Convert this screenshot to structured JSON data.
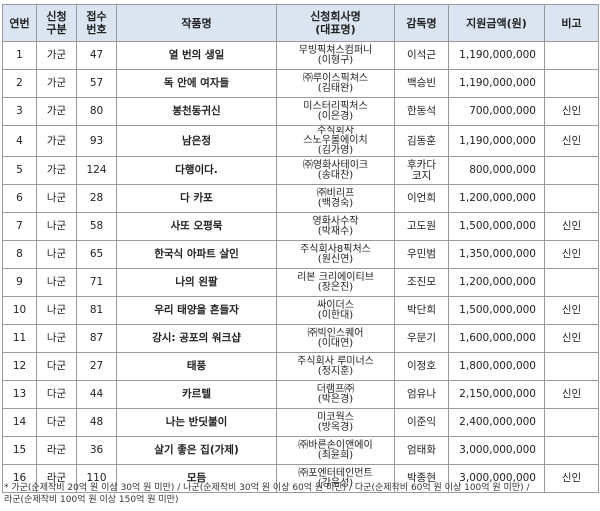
{
  "table": {
    "header": [
      [
        "연번"
      ],
      [
        "신청",
        "구분"
      ],
      [
        "접수",
        "번호"
      ],
      [
        "작품명"
      ],
      [
        "신청회사명",
        "(대표명)"
      ],
      [
        "감독명"
      ],
      [
        "지원금액(원)"
      ],
      [
        "비고"
      ]
    ],
    "rows": [
      [
        "1",
        "가군",
        "47",
        "열 번의 생일",
        [
          "무빙픽쳐스컴퍼니",
          "(이형구)"
        ],
        [
          "이석근"
        ],
        "1,190,000,000",
        ""
      ],
      [
        "2",
        "가군",
        "57",
        "독 안에 여자들",
        [
          "㈜루이스픽쳐스",
          "(김태완)"
        ],
        [
          "백승빈"
        ],
        "1,190,000,000",
        ""
      ],
      [
        "3",
        "가군",
        "80",
        "봉천동귀신",
        [
          "미스터리픽처스",
          "(이은경)"
        ],
        [
          "한동석"
        ],
        "700,000,000",
        "신인"
      ],
      [
        "4",
        "가군",
        "93",
        "남은정",
        [
          "주식회사",
          "스노우볼에이치",
          "(김가영)"
        ],
        [
          "김동훈"
        ],
        "1,190,000,000",
        "신인"
      ],
      [
        "5",
        "가군",
        "124",
        "다행이다.",
        [
          "㈜영화사테이크",
          "(송대찬)"
        ],
        [
          "후카다",
          "코지"
        ],
        "800,000,000",
        ""
      ],
      [
        "6",
        "나군",
        "28",
        "다 카포",
        [
          "㈜비리프",
          "(백경숙)"
        ],
        [
          "이언희"
        ],
        "1,200,000,000",
        ""
      ],
      [
        "7",
        "나군",
        "58",
        "사또 오평묵",
        [
          "영화사수작",
          "(박재수)"
        ],
        [
          "고도원"
        ],
        "1,500,000,000",
        "신인"
      ],
      [
        "8",
        "나군",
        "65",
        "한국식 아파트 살인",
        [
          "주식회사8픽처스",
          "(원신연)"
        ],
        [
          "우민범"
        ],
        "1,350,000,000",
        "신인"
      ],
      [
        "9",
        "나군",
        "71",
        "나의 왼팔",
        [
          "리본 크리에이티브",
          "(장은진)"
        ],
        [
          "조진모"
        ],
        "1,200,000,000",
        ""
      ],
      [
        "10",
        "나군",
        "81",
        "우리 태양을 흔들자",
        [
          "싸이더스",
          "(이한대)"
        ],
        [
          "박단희"
        ],
        "1,500,000,000",
        "신인"
      ],
      [
        "11",
        "나군",
        "87",
        "강시: 공포의 워크샵",
        [
          "㈜빅인스퀘어",
          "(이대연)"
        ],
        [
          "우문기"
        ],
        "1,600,000,000",
        "신인"
      ],
      [
        "12",
        "다군",
        "27",
        "태풍",
        [
          "주식회사 루미너스",
          "(정지훈)"
        ],
        [
          "이정호"
        ],
        "1,800,000,000",
        ""
      ],
      [
        "13",
        "다군",
        "44",
        "카르텔",
        [
          "더램프㈜",
          "(박은경)"
        ],
        [
          "엄유나"
        ],
        "2,150,000,000",
        "신인"
      ],
      [
        "14",
        "다군",
        "48",
        "나는 반딧불이",
        [
          "미코웍스",
          "(방옥경)"
        ],
        [
          "이준익"
        ],
        "2,400,000,000",
        ""
      ],
      [
        "15",
        "라군",
        "36",
        "살기 좋은 집(가제)",
        [
          "㈜바른손이앤에이",
          "(최윤희)"
        ],
        [
          "엄태화"
        ],
        "3,000,000,000",
        ""
      ],
      [
        "16",
        "라군",
        "110",
        "모듬",
        [
          "㈜포엔터테인먼트",
          "(강윤성)"
        ],
        [
          "박종현"
        ],
        "3,000,000,000",
        "신인"
      ]
    ]
  },
  "footnote": [
    "* 가군(순제작비 20억 원 이상 30억 원 미만) / 나군(순제작비 30억 원 이상 60억 원 미만) / 다군(순제작비 60억 원 이상 100억 원 미만) /",
    "라군(순제작비 100억 원 이상 150억 원 미만)"
  ]
}
